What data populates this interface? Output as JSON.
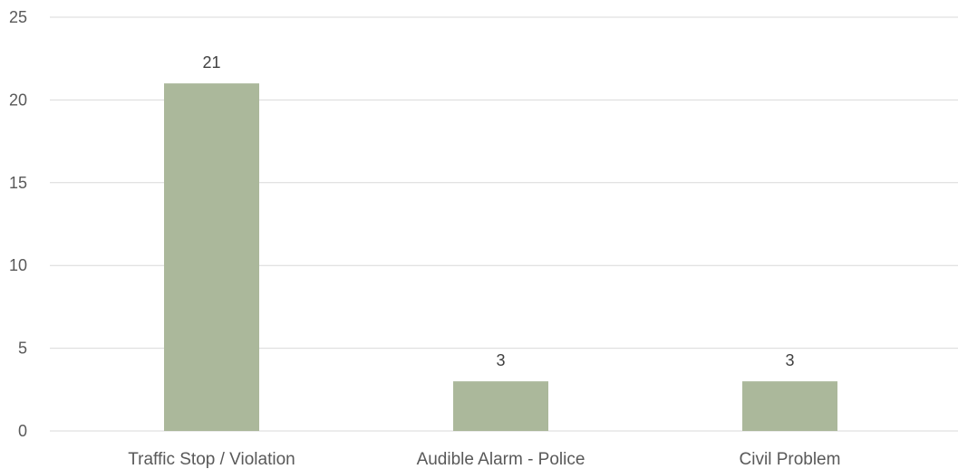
{
  "chart_data": {
    "type": "bar",
    "categories": [
      "Traffic Stop / Violation",
      "Audible Alarm - Police",
      "Civil Problem"
    ],
    "values": [
      21,
      3,
      3
    ],
    "data_labels": [
      "21",
      "3",
      "3"
    ],
    "title": "",
    "xlabel": "",
    "ylabel": "",
    "ylim": [
      0,
      25
    ],
    "yticks": [
      0,
      5,
      10,
      15,
      20,
      25
    ],
    "grid": true,
    "legend": "none",
    "bar_color": "#abb89b",
    "grid_color": "#d9d9d9",
    "text_color": "#595959"
  }
}
